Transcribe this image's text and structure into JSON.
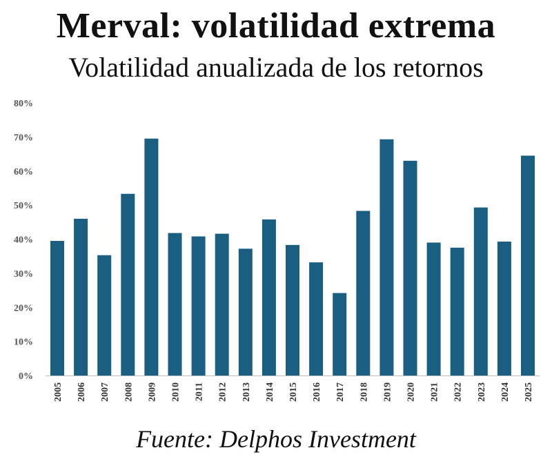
{
  "chart_data": {
    "type": "bar",
    "title": "Merval: volatilidad extrema",
    "subtitle": "Volatilidad anualizada de los retornos",
    "xlabel": "",
    "ylabel": "",
    "ylim": [
      0,
      80
    ],
    "yticks": [
      "0%",
      "10%",
      "20%",
      "30%",
      "40%",
      "50%",
      "60%",
      "70%",
      "80%"
    ],
    "categories": [
      "2005",
      "2006",
      "2007",
      "2008",
      "2009",
      "2010",
      "2011",
      "2012",
      "2013",
      "2014",
      "2015",
      "2016",
      "2017",
      "2018",
      "2019",
      "2020",
      "2021",
      "2022",
      "2023",
      "2024",
      "2025"
    ],
    "values": [
      39.5,
      46,
      35.3,
      53.3,
      69.5,
      41.8,
      40.8,
      41.6,
      37.2,
      45.8,
      38.3,
      33.2,
      24.2,
      48.3,
      69.3,
      63,
      39,
      37.5,
      49.3,
      39.3,
      64.5
    ],
    "bar_color": "#1a5e82",
    "grid": false,
    "legend": "none",
    "source": "Fuente: Delphos Investment"
  }
}
